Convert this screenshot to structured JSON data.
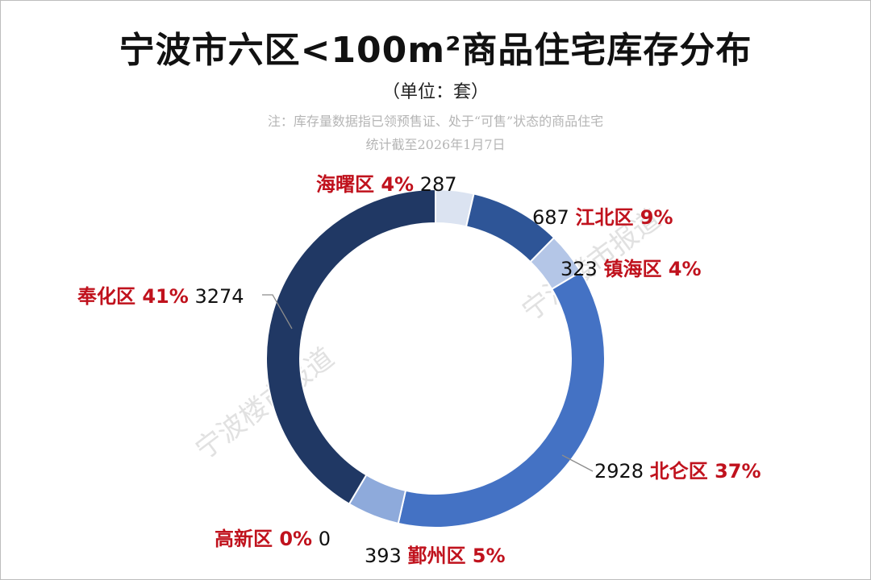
{
  "header": {
    "title": "宁波市六区<100m²商品住宅库存分布",
    "unit": "（单位：套）",
    "note_line1": "注：库存量数据指已领预售证、处于“可售”状态的商品住宅",
    "note_line2": "统计截至2026年1月7日"
  },
  "watermark": "宁波楼市报道",
  "colors": {
    "label_red": "#c0121d",
    "value_black": "#111111",
    "watermark": "#e1e1e1"
  },
  "chart_data": {
    "type": "pie",
    "variant": "donut",
    "start_angle_deg": 0,
    "direction": "clockwise",
    "series": [
      {
        "name": "海曙区",
        "value": 287,
        "percent": "4%",
        "color": "#dbe3f1"
      },
      {
        "name": "江北区",
        "value": 687,
        "percent": "9%",
        "color": "#2e5597"
      },
      {
        "name": "镇海区",
        "value": 323,
        "percent": "4%",
        "color": "#b4c6e7"
      },
      {
        "name": "北仑区",
        "value": 2928,
        "percent": "37%",
        "color": "#4472c4"
      },
      {
        "name": "鄞州区",
        "value": 393,
        "percent": "5%",
        "color": "#8eaadb"
      },
      {
        "name": "高新区",
        "value": 0,
        "percent": "0%",
        "color": "#1f3864"
      },
      {
        "name": "奉化区",
        "value": 3274,
        "percent": "41%",
        "color": "#203864"
      }
    ]
  }
}
